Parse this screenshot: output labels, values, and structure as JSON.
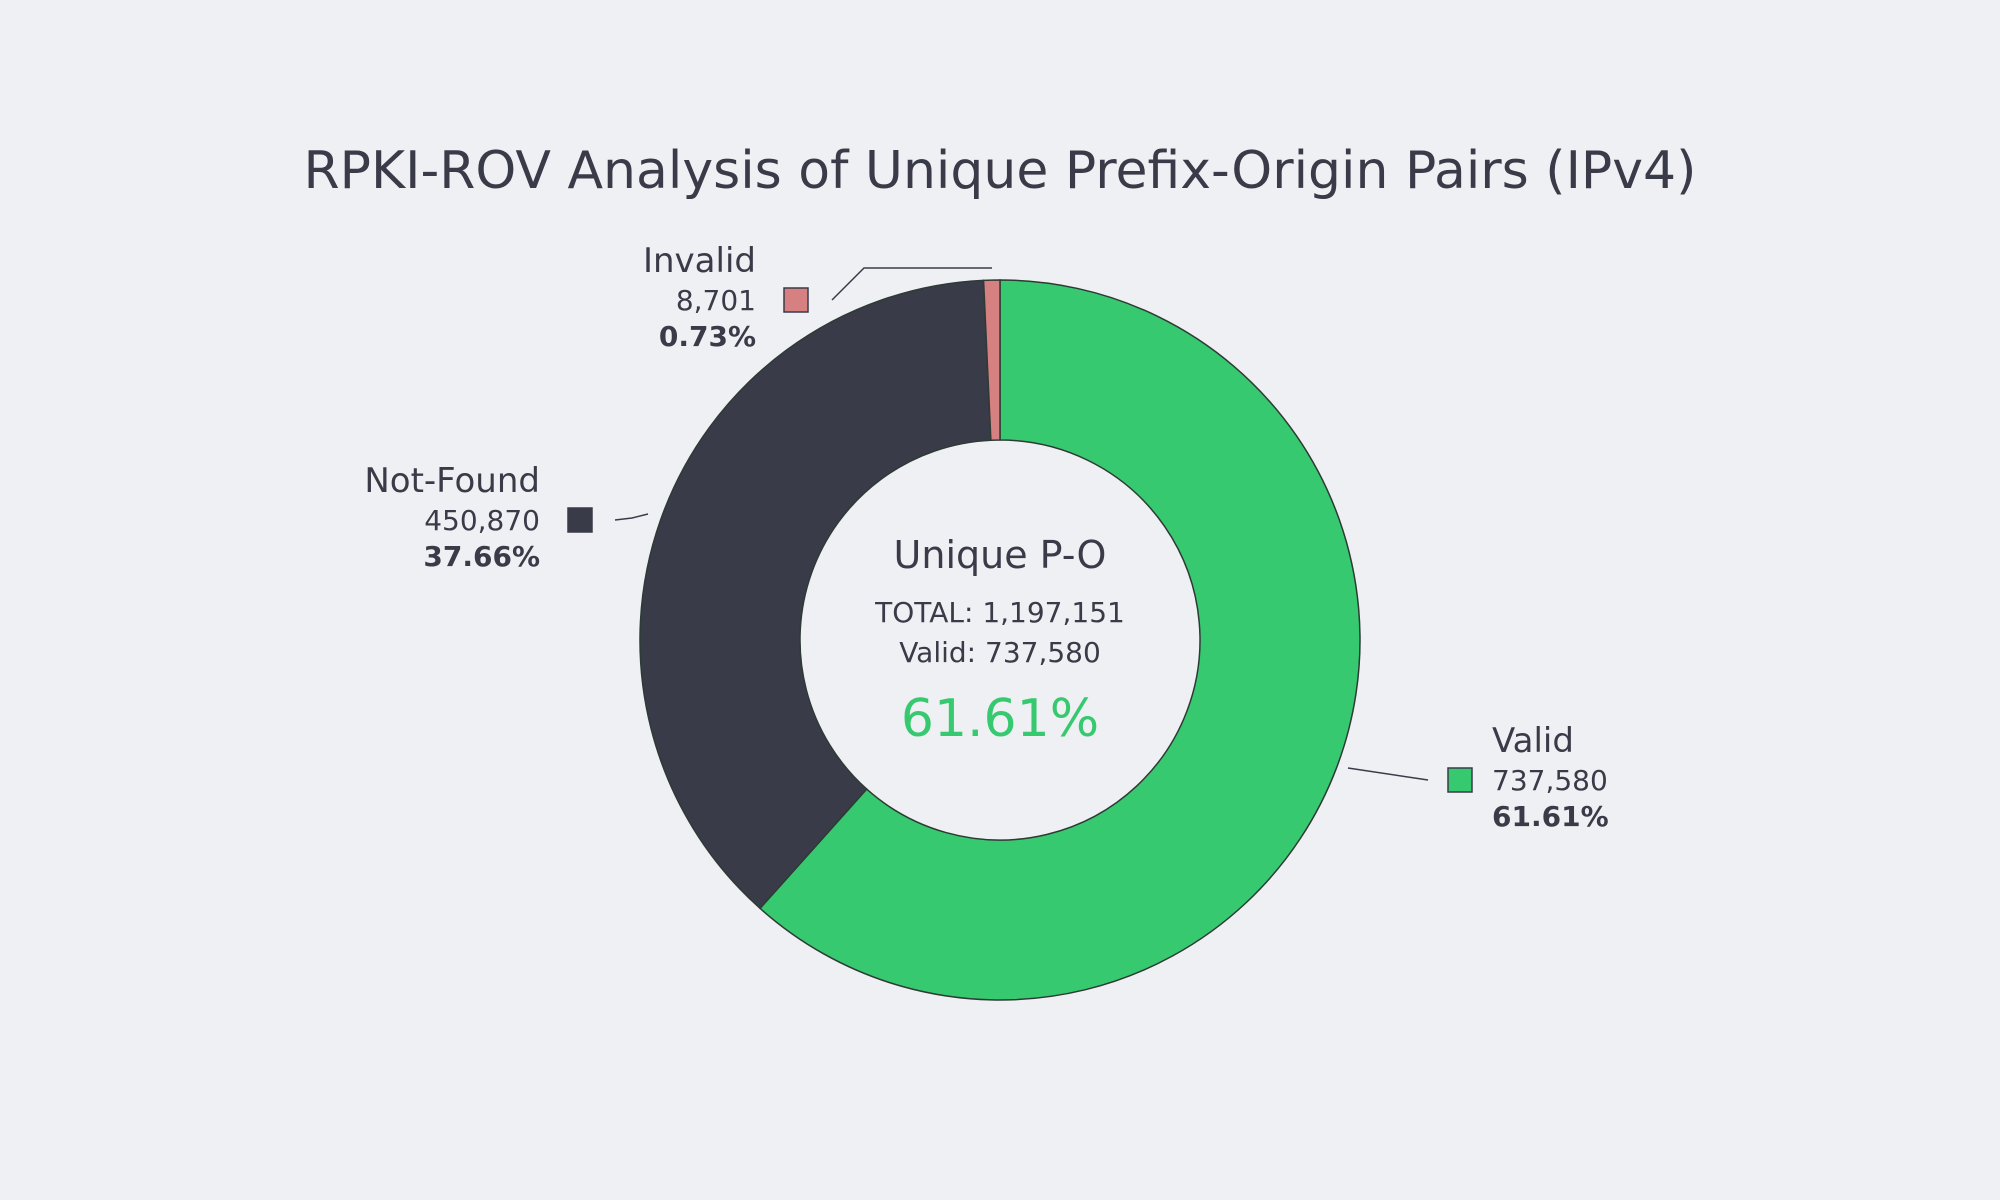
{
  "chart_data": {
    "type": "pie",
    "title": "RPKI-ROV Analysis of Unique Prefix-Origin Pairs (IPv4)",
    "slices": [
      {
        "name": "Valid",
        "count_label": "737,580",
        "value": 737580,
        "pct_label": "61.61%",
        "color": "#37c96f"
      },
      {
        "name": "Not-Found",
        "count_label": "450,870",
        "value": 450870,
        "pct_label": "37.66%",
        "color": "#3a3b49"
      },
      {
        "name": "Invalid",
        "count_label": "8,701",
        "value": 8701,
        "pct_label": "0.73%",
        "color": "#d78081"
      }
    ],
    "center": {
      "heading": "Unique P-O",
      "total_line": "TOTAL: 1,197,151",
      "valid_line": "Valid: 737,580",
      "big_value": "61.61%",
      "big_color": "#37c96f"
    },
    "outline_color": "#2e3a35",
    "background": "#eff0f3"
  }
}
